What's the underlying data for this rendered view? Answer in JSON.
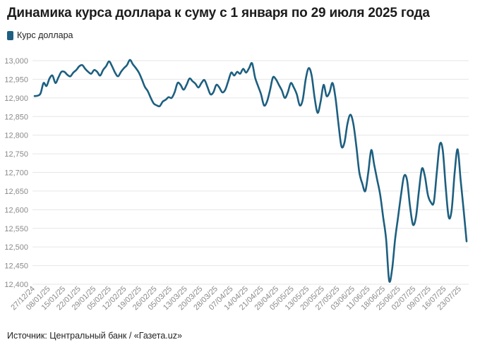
{
  "title": "Динамика курса доллара к суму с 1 января по 29 июля 2025 года",
  "source": "Источник: Центральный банк / «Газета.uz»",
  "colors": {
    "line": "#1d5f80",
    "grid": "#e6e6e6",
    "tick": "#8a8a8a"
  },
  "chart_data": {
    "type": "line",
    "legend_position": "top-left",
    "grid": true,
    "xlabel": "",
    "ylabel": "",
    "ylim": [
      12400,
      13000
    ],
    "y_ticks": [
      13000,
      12950,
      12900,
      12850,
      12800,
      12750,
      12700,
      12650,
      12600,
      12550,
      12500,
      12450,
      12400
    ],
    "y_tick_labels": [
      "13,000",
      "12,950",
      "12,900",
      "12,850",
      "12,800",
      "12,750",
      "12,700",
      "12,650",
      "12,600",
      "12,550",
      "12,500",
      "12,450",
      "12,400"
    ],
    "x_tick_labels": [
      "27/12/24",
      "08/01/25",
      "15/01/25",
      "22/01/25",
      "29/01/25",
      "05/02/25",
      "12/02/25",
      "19/02/25",
      "26/02/25",
      "05/03/25",
      "13/03/25",
      "20/03/25",
      "28/03/25",
      "07/04/25",
      "14/04/25",
      "21/04/25",
      "28/04/25",
      "05/05/25",
      "13/05/25",
      "20/05/25",
      "27/05/25",
      "03/06/25",
      "11/06/25",
      "18/06/25",
      "25/06/25",
      "02/07/25",
      "09/07/25",
      "16/07/25",
      "23/07/25"
    ],
    "series": [
      {
        "name": "Курс доллара",
        "color": "#1d5f80",
        "values": [
          12905,
          12906,
          12912,
          12940,
          12932,
          12952,
          12960,
          12940,
          12955,
          12970,
          12970,
          12962,
          12958,
          12968,
          12975,
          12985,
          12988,
          12978,
          12970,
          12965,
          12975,
          12970,
          12960,
          12975,
          12985,
          12998,
          12985,
          12968,
          12958,
          12970,
          12980,
          12988,
          13002,
          12990,
          12980,
          12968,
          12950,
          12930,
          12918,
          12900,
          12885,
          12880,
          12878,
          12890,
          12895,
          12902,
          12900,
          12915,
          12940,
          12935,
          12922,
          12935,
          12952,
          12945,
          12938,
          12928,
          12940,
          12948,
          12930,
          12910,
          12915,
          12935,
          12928,
          12915,
          12922,
          12945,
          12968,
          12960,
          12970,
          12965,
          12978,
          12968,
          12980,
          12993,
          12955,
          12932,
          12910,
          12880,
          12890,
          12920,
          12955,
          12950,
          12935,
          12920,
          12900,
          12915,
          12940,
          12928,
          12910,
          12880,
          12895,
          12950,
          12980,
          12960,
          12900,
          12860,
          12890,
          12935,
          12905,
          12915,
          12940,
          12900,
          12830,
          12770,
          12780,
          12830,
          12855,
          12830,
          12770,
          12700,
          12670,
          12650,
          12700,
          12760,
          12720,
          12680,
          12640,
          12580,
          12520,
          12410,
          12440,
          12520,
          12580,
          12640,
          12690,
          12680,
          12610,
          12560,
          12580,
          12650,
          12710,
          12690,
          12640,
          12620,
          12620,
          12700,
          12775,
          12760,
          12660,
          12580,
          12600,
          12700,
          12762,
          12680,
          12600,
          12515
        ]
      }
    ]
  }
}
